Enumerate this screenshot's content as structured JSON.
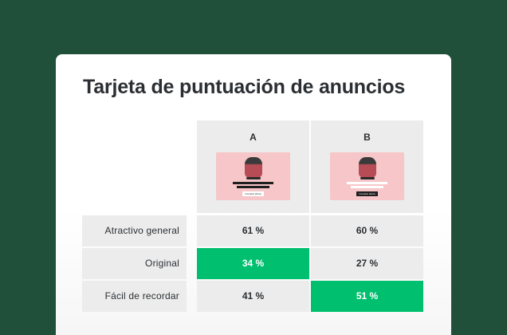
{
  "title": "Tarjeta de puntuación de anuncios",
  "columns": [
    {
      "label": "A",
      "cta_text": "Comprar ahora"
    },
    {
      "label": "B",
      "cta_text": "Comprar ahora"
    }
  ],
  "rows": [
    {
      "label": "Atractivo general",
      "a": "61 %",
      "b": "60 %",
      "winner": "none"
    },
    {
      "label": "Original",
      "a": "34 %",
      "b": "27 %",
      "winner": "a"
    },
    {
      "label": "Fácil de recordar",
      "a": "41 %",
      "b": "51 %",
      "winner": "b"
    }
  ],
  "colors": {
    "page_background": "#205039",
    "winner_highlight": "#00bf6f",
    "cell_background": "#ececec",
    "ad_background": "#f6c6c8"
  },
  "icons": {
    "ad_image": "speaker-product-icon"
  }
}
